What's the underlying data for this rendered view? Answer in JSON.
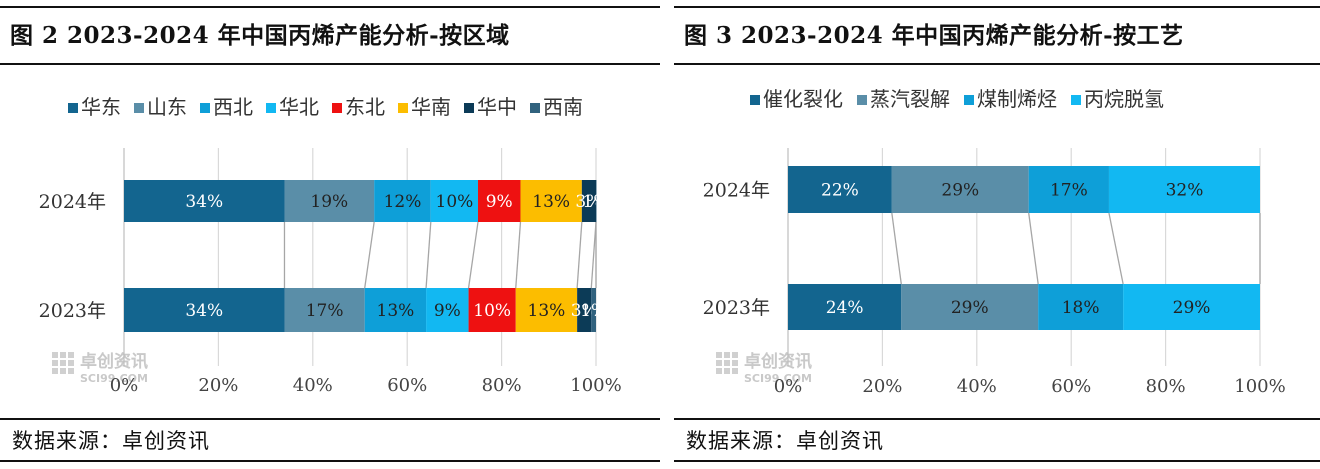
{
  "panels": [
    {
      "title": "图 2 2023-2024 年中国丙烯产能分析-按区域",
      "source": "数据来源：卓创资讯",
      "watermark": {
        "cn": "卓创资讯",
        "en": "SCI99.COM"
      }
    },
    {
      "title": "图 3 2023-2024 年中国丙烯产能分析-按工艺",
      "source": "数据来源：卓创资讯",
      "watermark": {
        "cn": "卓创资讯",
        "en": "SCI99.COM"
      }
    }
  ],
  "chart_data": [
    {
      "type": "bar",
      "orientation": "horizontal",
      "stacked": "percent",
      "categories": [
        "2024年",
        "2023年"
      ],
      "series": [
        {
          "name": "华东",
          "color": "#13658f",
          "values": [
            34,
            34
          ],
          "labels": [
            "34%",
            "34%"
          ]
        },
        {
          "name": "山东",
          "color": "#5a8ea8",
          "values": [
            19,
            17
          ],
          "labels": [
            "19%",
            "17%"
          ]
        },
        {
          "name": "西北",
          "color": "#0e9fd8",
          "values": [
            12,
            13
          ],
          "labels": [
            "12%",
            "13%"
          ]
        },
        {
          "name": "华北",
          "color": "#12b8f2",
          "values": [
            10,
            9
          ],
          "labels": [
            "10%",
            "9%"
          ]
        },
        {
          "name": "东北",
          "color": "#ee1111",
          "values": [
            9,
            10
          ],
          "labels": [
            "9%",
            "10%"
          ]
        },
        {
          "name": "华南",
          "color": "#fcbd00",
          "values": [
            13,
            13
          ],
          "labels": [
            "13%",
            "13%"
          ]
        },
        {
          "name": "华中",
          "color": "#0c3b57",
          "values": [
            3,
            3
          ],
          "labels": [
            "3%",
            "3%"
          ]
        },
        {
          "name": "西南",
          "color": "#31627e",
          "values": [
            1,
            1
          ],
          "labels": [
            "1%",
            "1%"
          ]
        }
      ],
      "x_ticks": [
        "0%",
        "20%",
        "40%",
        "60%",
        "80%",
        "100%"
      ],
      "xlim": [
        0,
        100
      ],
      "legend": "top",
      "grid": "vertical",
      "series_lines": true
    },
    {
      "type": "bar",
      "orientation": "horizontal",
      "stacked": "percent",
      "categories": [
        "2024年",
        "2023年"
      ],
      "series": [
        {
          "name": "催化裂化",
          "color": "#13658f",
          "values": [
            22,
            24
          ],
          "labels": [
            "22%",
            "24%"
          ]
        },
        {
          "name": "蒸汽裂解",
          "color": "#5a8ea8",
          "values": [
            29,
            29
          ],
          "labels": [
            "29%",
            "29%"
          ]
        },
        {
          "name": "煤制烯烃",
          "color": "#0e9fd8",
          "values": [
            17,
            18
          ],
          "labels": [
            "17%",
            "18%"
          ]
        },
        {
          "name": "丙烷脱氢",
          "color": "#12b8f2",
          "values": [
            32,
            29
          ],
          "labels": [
            "32%",
            "29%"
          ]
        }
      ],
      "x_ticks": [
        "0%",
        "20%",
        "40%",
        "60%",
        "80%",
        "100%"
      ],
      "xlim": [
        0,
        100
      ],
      "legend": "top",
      "grid": "vertical",
      "series_lines": true
    }
  ]
}
